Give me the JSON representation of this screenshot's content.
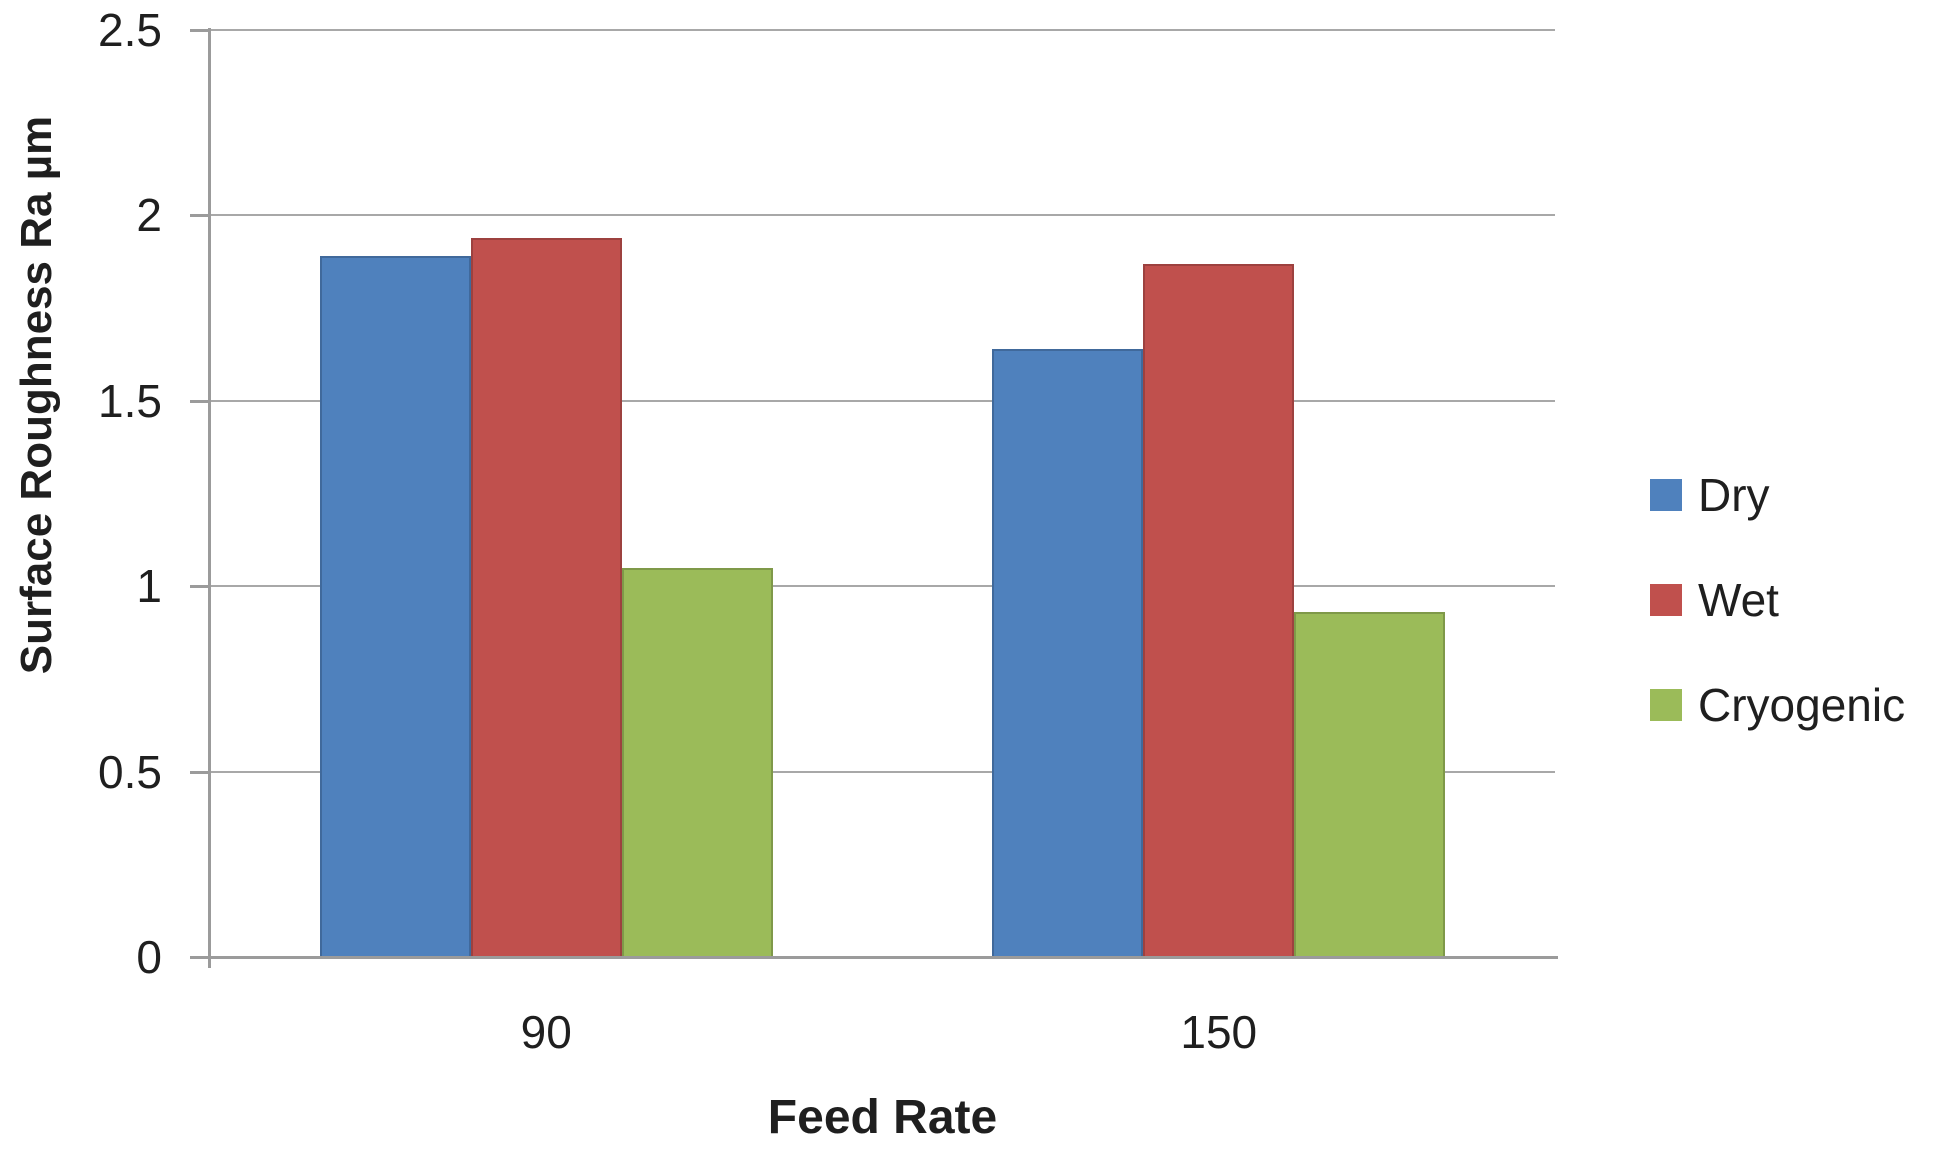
{
  "chart_data": {
    "type": "bar",
    "title": "",
    "categories": [
      "90",
      "150"
    ],
    "series": [
      {
        "name": "Dry",
        "color": "#4F81BD",
        "values": [
          1.89,
          1.64
        ]
      },
      {
        "name": "Wet",
        "color": "#C0504D",
        "values": [
          1.94,
          1.87
        ]
      },
      {
        "name": "Cryogenic",
        "color": "#9BBB59",
        "values": [
          1.05,
          0.93
        ]
      }
    ],
    "xlabel": "Feed Rate",
    "ylabel": "Surface Roughness Ra µm",
    "ylim": [
      0,
      2.5
    ],
    "yticks": [
      0,
      0.5,
      1,
      1.5,
      2,
      2.5
    ],
    "ytick_labels": [
      "0",
      "0.5",
      "1",
      "1.5",
      "2",
      "2.5"
    ],
    "grid": true,
    "legend_position": "right",
    "colors": {
      "gridline": "#a8a8a8",
      "axis": "#9b9b9b",
      "text": "#1f1f1f"
    }
  }
}
